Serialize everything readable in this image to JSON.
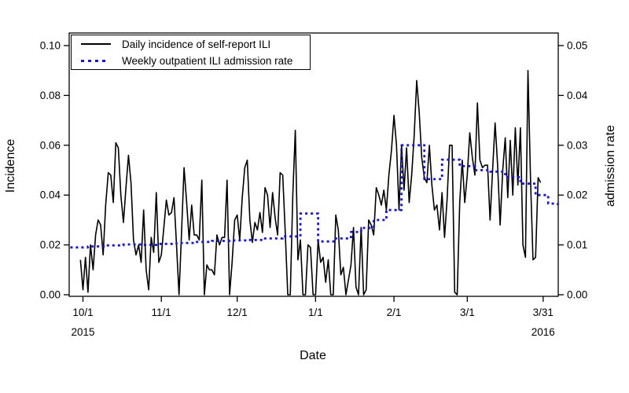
{
  "figure": {
    "background": "#ffffff",
    "frame_color": "#000000"
  },
  "chart_data": {
    "type": "line",
    "title": "",
    "xlabel": "Date",
    "ylabel_left": "Incidence",
    "ylabel_right": "admission rate",
    "grid": "off",
    "legend_position": "top-left-inside",
    "x_axis": {
      "start_date": "2015-10-01",
      "end_date": "2016-03-31",
      "ticks": [
        {
          "label": "10/1",
          "day": 0,
          "year": "2015"
        },
        {
          "label": "11/1",
          "day": 31,
          "year": ""
        },
        {
          "label": "12/1",
          "day": 61,
          "year": ""
        },
        {
          "label": "1/1",
          "day": 92,
          "year": ""
        },
        {
          "label": "2/1",
          "day": 123,
          "year": ""
        },
        {
          "label": "3/1",
          "day": 152,
          "year": ""
        },
        {
          "label": "3/31",
          "day": 182,
          "year": "2016"
        }
      ]
    },
    "y_left": {
      "min": 0,
      "max": 0.1,
      "ticks": [
        "0.00",
        "0.02",
        "0.04",
        "0.06",
        "0.08",
        "0.10"
      ]
    },
    "y_right": {
      "min": 0,
      "max": 0.05,
      "ticks": [
        "0.00",
        "0.01",
        "0.02",
        "0.03",
        "0.04",
        "0.05"
      ]
    },
    "series": [
      {
        "name": "Daily incidence of self-report ILI",
        "axis": "left",
        "style": "solid",
        "color": "#000000",
        "daily_values": [
          0.014,
          0.002,
          0.015,
          0.001,
          0.02,
          0.01,
          0.024,
          0.03,
          0.028,
          0.016,
          0.036,
          0.049,
          0.048,
          0.037,
          0.061,
          0.059,
          0.04,
          0.029,
          0.043,
          0.056,
          0.045,
          0.022,
          0.016,
          0.02,
          0.013,
          0.034,
          0.01,
          0.002,
          0.023,
          0.017,
          0.041,
          0.013,
          0.016,
          0.027,
          0.038,
          0.032,
          0.033,
          0.039,
          0.02,
          0.0,
          0.025,
          0.051,
          0.037,
          0.022,
          0.036,
          0.024,
          0.024,
          0.022,
          0.046,
          0.0,
          0.012,
          0.01,
          0.01,
          0.008,
          0.024,
          0.02,
          0.023,
          0.023,
          0.046,
          0.0,
          0.013,
          0.03,
          0.032,
          0.022,
          0.039,
          0.051,
          0.054,
          0.03,
          0.021,
          0.029,
          0.026,
          0.033,
          0.025,
          0.043,
          0.04,
          0.027,
          0.041,
          0.031,
          0.024,
          0.049,
          0.048,
          0.025,
          0.0,
          0.0,
          0.04,
          0.066,
          0.014,
          0.022,
          0.0,
          0.0,
          0.02,
          0.019,
          0.0,
          0.0,
          0.022,
          0.013,
          0.015,
          0.005,
          0.014,
          0.0,
          0.0,
          0.032,
          0.026,
          0.008,
          0.011,
          0.0,
          0.006,
          0.012,
          0.027,
          0.003,
          0.0,
          0.027,
          0.0,
          0.002,
          0.03,
          0.028,
          0.024,
          0.043,
          0.04,
          0.036,
          0.042,
          0.034,
          0.048,
          0.058,
          0.072,
          0.06,
          0.034,
          0.06,
          0.042,
          0.059,
          0.037,
          0.048,
          0.064,
          0.086,
          0.073,
          0.055,
          0.047,
          0.045,
          0.06,
          0.044,
          0.034,
          0.036,
          0.026,
          0.041,
          0.023,
          0.038,
          0.06,
          0.06,
          0.001,
          0.0,
          0.037,
          0.054,
          0.037,
          0.048,
          0.065,
          0.055,
          0.048,
          0.077,
          0.054,
          0.051,
          0.052,
          0.052,
          0.03,
          0.05,
          0.069,
          0.052,
          0.028,
          0.05,
          0.063,
          0.039,
          0.062,
          0.04,
          0.067,
          0.044,
          0.067,
          0.02,
          0.015,
          0.09,
          0.047,
          0.014,
          0.015,
          0.047,
          0.045
        ]
      },
      {
        "name": "Weekly outpatient ILI admission rate",
        "axis": "right",
        "style": "dotted",
        "color": "#1515dd",
        "weekly_steps": [
          [
            -5,
            0.0095
          ],
          [
            2,
            0.0097
          ],
          [
            9,
            0.0099
          ],
          [
            16,
            0.0101
          ],
          [
            23,
            0.01
          ],
          [
            30,
            0.0102
          ],
          [
            37,
            0.0104
          ],
          [
            44,
            0.0106
          ],
          [
            51,
            0.0108
          ],
          [
            58,
            0.0109
          ],
          [
            65,
            0.011
          ],
          [
            72,
            0.0113
          ],
          [
            79,
            0.0117
          ],
          [
            86,
            0.0163
          ],
          [
            93,
            0.0107
          ],
          [
            100,
            0.0113
          ],
          [
            106,
            0.0126
          ],
          [
            110,
            0.0134
          ],
          [
            115,
            0.015
          ],
          [
            120,
            0.017
          ],
          [
            126,
            0.03
          ],
          [
            135,
            0.0232
          ],
          [
            142,
            0.0271
          ],
          [
            149,
            0.0258
          ],
          [
            155,
            0.025
          ],
          [
            161,
            0.0247
          ],
          [
            167,
            0.0236
          ],
          [
            173,
            0.0223
          ],
          [
            179,
            0.02
          ],
          [
            184,
            0.0183
          ],
          [
            188,
            0.018
          ]
        ]
      }
    ]
  }
}
